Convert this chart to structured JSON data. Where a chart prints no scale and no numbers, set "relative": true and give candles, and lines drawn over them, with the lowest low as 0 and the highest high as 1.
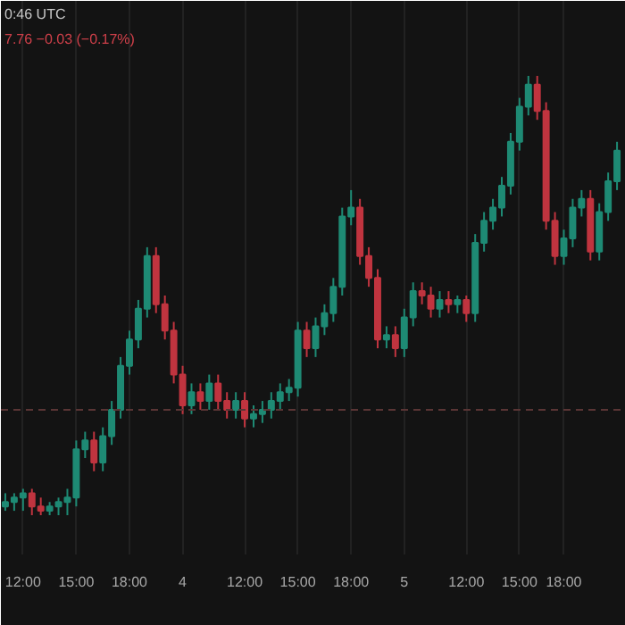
{
  "chart_data": {
    "type": "candlestick",
    "relative": true,
    "grid": "x",
    "annotations": [
      "0:46 UTC",
      "7.76 −0.03 (−0.17%)"
    ],
    "categories": [
      null,
      null,
      "12:00",
      null,
      null,
      null,
      null,
      null,
      "15:00",
      null,
      null,
      null,
      null,
      null,
      "18:00",
      null,
      null,
      null,
      null,
      null,
      "4",
      null,
      null,
      null,
      null,
      null,
      null,
      "12:00",
      null,
      null,
      null,
      null,
      null,
      "15:00",
      null,
      null,
      null,
      null,
      null,
      "18:00",
      null,
      null,
      null,
      null,
      null,
      "5",
      null,
      null,
      null,
      null,
      null,
      null,
      "12:00",
      null,
      null,
      null,
      null,
      null,
      "15:00",
      null,
      null,
      null,
      null,
      "18:00",
      null,
      null,
      null,
      null,
      null,
      null
    ],
    "ref_lines": [
      {
        "axis": "y",
        "value": 0.24,
        "color": "#5a3535",
        "line_style": "dashed"
      }
    ],
    "ohlc": [
      [
        0.02,
        0.05,
        0.01,
        0.03
      ],
      [
        0.03,
        0.05,
        0.01,
        0.04
      ],
      [
        0.04,
        0.06,
        0.01,
        0.05
      ],
      [
        0.05,
        0.06,
        0.0,
        0.02
      ],
      [
        0.02,
        0.04,
        0.0,
        0.01
      ],
      [
        0.01,
        0.03,
        0.0,
        0.02
      ],
      [
        0.02,
        0.04,
        0.0,
        0.03
      ],
      [
        0.03,
        0.06,
        0.0,
        0.04
      ],
      [
        0.04,
        0.17,
        0.02,
        0.15
      ],
      [
        0.15,
        0.19,
        0.13,
        0.17
      ],
      [
        0.17,
        0.19,
        0.1,
        0.12
      ],
      [
        0.12,
        0.2,
        0.1,
        0.18
      ],
      [
        0.18,
        0.26,
        0.16,
        0.24
      ],
      [
        0.24,
        0.36,
        0.22,
        0.34
      ],
      [
        0.34,
        0.42,
        0.32,
        0.4
      ],
      [
        0.4,
        0.49,
        0.38,
        0.47
      ],
      [
        0.47,
        0.61,
        0.45,
        0.59
      ],
      [
        0.59,
        0.61,
        0.46,
        0.48
      ],
      [
        0.48,
        0.5,
        0.4,
        0.42
      ],
      [
        0.42,
        0.44,
        0.3,
        0.32
      ],
      [
        0.32,
        0.34,
        0.23,
        0.25
      ],
      [
        0.25,
        0.3,
        0.23,
        0.28
      ],
      [
        0.28,
        0.3,
        0.24,
        0.26
      ],
      [
        0.26,
        0.32,
        0.24,
        0.3
      ],
      [
        0.3,
        0.32,
        0.24,
        0.26
      ],
      [
        0.26,
        0.28,
        0.22,
        0.24
      ],
      [
        0.24,
        0.28,
        0.22,
        0.26
      ],
      [
        0.26,
        0.28,
        0.2,
        0.22
      ],
      [
        0.22,
        0.25,
        0.2,
        0.23
      ],
      [
        0.23,
        0.26,
        0.21,
        0.24
      ],
      [
        0.24,
        0.28,
        0.22,
        0.26
      ],
      [
        0.26,
        0.3,
        0.24,
        0.28
      ],
      [
        0.28,
        0.31,
        0.26,
        0.29
      ],
      [
        0.29,
        0.44,
        0.27,
        0.42
      ],
      [
        0.42,
        0.44,
        0.36,
        0.38
      ],
      [
        0.38,
        0.45,
        0.36,
        0.43
      ],
      [
        0.43,
        0.48,
        0.41,
        0.46
      ],
      [
        0.46,
        0.54,
        0.44,
        0.52
      ],
      [
        0.52,
        0.7,
        0.5,
        0.68
      ],
      [
        0.68,
        0.74,
        0.66,
        0.7
      ],
      [
        0.7,
        0.72,
        0.57,
        0.59
      ],
      [
        0.59,
        0.61,
        0.52,
        0.54
      ],
      [
        0.54,
        0.56,
        0.38,
        0.4
      ],
      [
        0.4,
        0.43,
        0.38,
        0.41
      ],
      [
        0.41,
        0.43,
        0.36,
        0.38
      ],
      [
        0.38,
        0.47,
        0.36,
        0.45
      ],
      [
        0.45,
        0.53,
        0.43,
        0.51
      ],
      [
        0.51,
        0.53,
        0.48,
        0.5
      ],
      [
        0.5,
        0.52,
        0.45,
        0.47
      ],
      [
        0.47,
        0.51,
        0.45,
        0.49
      ],
      [
        0.49,
        0.51,
        0.46,
        0.48
      ],
      [
        0.48,
        0.5,
        0.46,
        0.49
      ],
      [
        0.49,
        0.5,
        0.44,
        0.46
      ],
      [
        0.46,
        0.64,
        0.44,
        0.62
      ],
      [
        0.62,
        0.69,
        0.6,
        0.67
      ],
      [
        0.67,
        0.72,
        0.65,
        0.7
      ],
      [
        0.7,
        0.77,
        0.68,
        0.75
      ],
      [
        0.75,
        0.87,
        0.73,
        0.85
      ],
      [
        0.85,
        0.95,
        0.83,
        0.93
      ],
      [
        0.93,
        1.0,
        0.91,
        0.98
      ],
      [
        0.98,
        1.0,
        0.9,
        0.92
      ],
      [
        0.92,
        0.94,
        0.65,
        0.67
      ],
      [
        0.67,
        0.69,
        0.57,
        0.59
      ],
      [
        0.59,
        0.65,
        0.57,
        0.63
      ],
      [
        0.63,
        0.72,
        0.61,
        0.7
      ],
      [
        0.7,
        0.74,
        0.68,
        0.72
      ],
      [
        0.72,
        0.74,
        0.58,
        0.6
      ],
      [
        0.6,
        0.71,
        0.58,
        0.69
      ],
      [
        0.69,
        0.78,
        0.67,
        0.76
      ],
      [
        0.76,
        0.85,
        0.74,
        0.83
      ]
    ],
    "colors": [
      "#1e8a74",
      "#1e8a74",
      "#1e8a74",
      "#c0343f",
      "#c0343f",
      "#1e8a74",
      "#1e8a74",
      "#1e8a74",
      "#1e8a74",
      "#1e8a74",
      "#c0343f",
      "#1e8a74",
      "#1e8a74",
      "#1e8a74",
      "#1e8a74",
      "#1e8a74",
      "#1e8a74",
      "#c0343f",
      "#c0343f",
      "#c0343f",
      "#c0343f",
      "#1e8a74",
      "#c0343f",
      "#1e8a74",
      "#c0343f",
      "#c0343f",
      "#1e8a74",
      "#c0343f",
      "#1e8a74",
      "#1e8a74",
      "#1e8a74",
      "#1e8a74",
      "#1e8a74",
      "#1e8a74",
      "#c0343f",
      "#1e8a74",
      "#1e8a74",
      "#1e8a74",
      "#1e8a74",
      "#1e8a74",
      "#c0343f",
      "#c0343f",
      "#c0343f",
      "#1e8a74",
      "#c0343f",
      "#1e8a74",
      "#1e8a74",
      "#c0343f",
      "#c0343f",
      "#1e8a74",
      "#c0343f",
      "#1e8a74",
      "#c0343f",
      "#1e8a74",
      "#1e8a74",
      "#1e8a74",
      "#1e8a74",
      "#1e8a74",
      "#1e8a74",
      "#1e8a74",
      "#c0343f",
      "#c0343f",
      "#c0343f",
      "#1e8a74",
      "#1e8a74",
      "#1e8a74",
      "#c0343f",
      "#1e8a74",
      "#1e8a74",
      "#1e8a74"
    ]
  }
}
